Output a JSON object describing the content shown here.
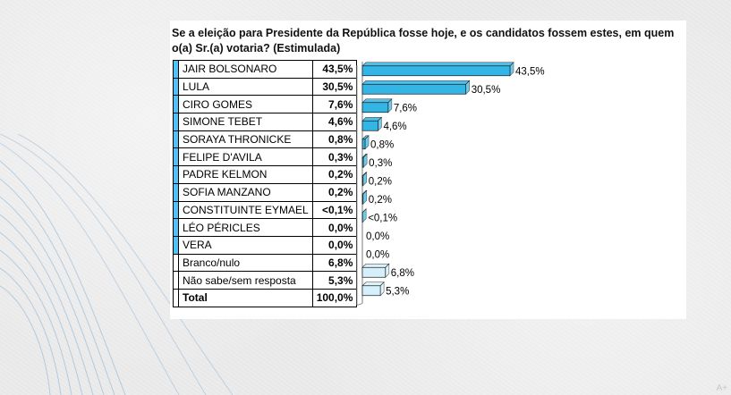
{
  "question": "Se a eleição para Presidente da República fosse hoje, e os candidatos fossem estes, em quem o(a) Sr.(a) votaria? (Estimulada)",
  "rows": [
    {
      "name": "JAIR BOLSONARO",
      "pct": "43,5%",
      "value": 43.5,
      "label": "43,5%",
      "color": "#33b5e5",
      "accent": "#4fc3f7"
    },
    {
      "name": "LULA",
      "pct": "30,5%",
      "value": 30.5,
      "label": "30,5%",
      "color": "#33b5e5",
      "accent": "#4fc3f7"
    },
    {
      "name": "CIRO GOMES",
      "pct": "7,6%",
      "value": 7.6,
      "label": "7,6%",
      "color": "#33b5e5",
      "accent": "#4fc3f7"
    },
    {
      "name": "SIMONE TEBET",
      "pct": "4,6%",
      "value": 4.6,
      "label": "4,6%",
      "color": "#33b5e5",
      "accent": "#4fc3f7"
    },
    {
      "name": "SORAYA THRONICKE",
      "pct": "0,8%",
      "value": 0.8,
      "label": "0,8%",
      "color": "#33b5e5",
      "accent": "#4fc3f7"
    },
    {
      "name": "FELIPE D'AVILA",
      "pct": "0,3%",
      "value": 0.3,
      "label": "0,3%",
      "color": "#33b5e5",
      "accent": "#4fc3f7"
    },
    {
      "name": "PADRE KELMON",
      "pct": "0,2%",
      "value": 0.2,
      "label": "0,2%",
      "color": "#33b5e5",
      "accent": "#4fc3f7"
    },
    {
      "name": "SOFIA MANZANO",
      "pct": "0,2%",
      "value": 0.2,
      "label": "0,2%",
      "color": "#33b5e5",
      "accent": "#4fc3f7"
    },
    {
      "name": "CONSTITUINTE EYMAEL",
      "pct": "<0,1%",
      "value": 0.05,
      "label": "<0,1%",
      "color": "#33b5e5",
      "accent": "#4fc3f7"
    },
    {
      "name": "LÉO PÉRICLES",
      "pct": "0,0%",
      "value": 0,
      "label": "0,0%",
      "color": "#33b5e5",
      "accent": "#4fc3f7"
    },
    {
      "name": "VERA",
      "pct": "0,0%",
      "value": 0,
      "label": "0,0%",
      "color": "#33b5e5",
      "accent": "#4fc3f7"
    },
    {
      "name": "Branco/nulo",
      "pct": "6,8%",
      "value": 6.8,
      "label": "6,8%",
      "color": "#d6f0fb",
      "accent": "#ffffff"
    },
    {
      "name": "Não sabe/sem resposta",
      "pct": "5,3%",
      "value": 5.3,
      "label": "5,3%",
      "color": "#d6f0fb",
      "accent": "#ffffff"
    }
  ],
  "total": {
    "name": "Total",
    "pct": "100,0%"
  },
  "chart_data": {
    "type": "bar",
    "orientation": "horizontal",
    "title": "Se a eleição para Presidente da República fosse hoje, e os candidatos fossem estes, em quem o(a) Sr.(a) votaria? (Estimulada)",
    "categories": [
      "JAIR BOLSONARO",
      "LULA",
      "CIRO GOMES",
      "SIMONE TEBET",
      "SORAYA THRONICKE",
      "FELIPE D'AVILA",
      "PADRE KELMON",
      "SOFIA MANZANO",
      "CONSTITUINTE EYMAEL",
      "LÉO PÉRICLES",
      "VERA",
      "Branco/nulo",
      "Não sabe/sem resposta"
    ],
    "values": [
      43.5,
      30.5,
      7.6,
      4.6,
      0.8,
      0.3,
      0.2,
      0.2,
      0.05,
      0.0,
      0.0,
      6.8,
      5.3
    ],
    "data_labels": [
      "43,5%",
      "30,5%",
      "7,6%",
      "4,6%",
      "0,8%",
      "0,3%",
      "0,2%",
      "0,2%",
      "<0,1%",
      "0,0%",
      "0,0%",
      "6,8%",
      "5,3%"
    ],
    "xlim": [
      0,
      45
    ],
    "grid": false
  },
  "corner_mark": "A+"
}
